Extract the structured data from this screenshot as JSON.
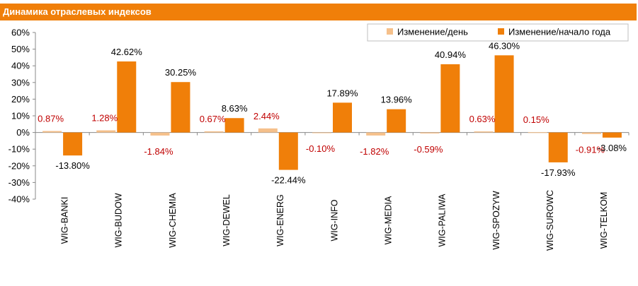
{
  "title": "Динамика отраслевых индексов",
  "colors": {
    "day": "#f5c08b",
    "ytd": "#f07f09",
    "title_bg": "#f07f09",
    "day_label": "#c00000"
  },
  "chart_data": {
    "type": "bar",
    "categories": [
      "WIG-BANKI",
      "WIG-BUDOW",
      "WIG-CHEMIA",
      "WIG-DEWEL",
      "WIG-ENERG",
      "WIG-INFO",
      "WIG-MEDIA",
      "WIG-PALIWA",
      "WIG-SPOZYW",
      "WIG-SUROWC",
      "WIG-TELKOM"
    ],
    "series": [
      {
        "name": "Изменение/день",
        "values": [
          0.87,
          1.28,
          -1.84,
          0.67,
          2.44,
          -0.1,
          -1.82,
          -0.59,
          0.63,
          0.15,
          -0.91
        ],
        "labels": [
          "0.87%",
          "1.28%",
          "-1.84%",
          "0.67%",
          "2.44%",
          "-0.10%",
          "-1.82%",
          "-0.59%",
          "0.63%",
          "0.15%",
          "-0.91%"
        ]
      },
      {
        "name": "Изменение/начало года",
        "values": [
          -13.8,
          42.62,
          30.25,
          8.63,
          -22.44,
          17.89,
          13.96,
          40.94,
          46.3,
          -17.93,
          -3.08
        ],
        "labels": [
          "-13.80%",
          "42.62%",
          "30.25%",
          "8.63%",
          "-22.44%",
          "17.89%",
          "13.96%",
          "40.94%",
          "46.30%",
          "-17.93%",
          "-3.08%"
        ]
      }
    ],
    "ylim": [
      -40,
      60
    ],
    "yticks": [
      "-40%",
      "-30%",
      "-20%",
      "-10%",
      "0%",
      "10%",
      "20%",
      "30%",
      "40%",
      "50%",
      "60%"
    ],
    "legend": "top-right",
    "grid": false
  }
}
